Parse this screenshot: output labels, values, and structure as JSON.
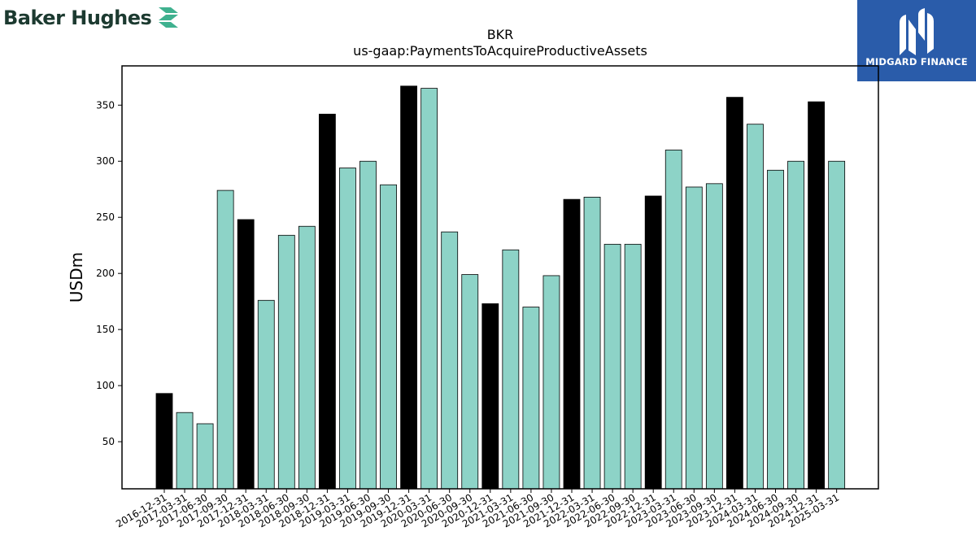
{
  "brand": {
    "left_name": "Baker Hughes",
    "left_logo_icon": "baker-hughes-chevron-icon",
    "left_color": "#1c3a30",
    "left_accent": "#3fb18f",
    "right_name": "MIDGARD FINANCE",
    "right_logo_icon": "midgard-m-icon",
    "right_color": "#2a5caa"
  },
  "chart_data": {
    "type": "bar",
    "title": "BKR",
    "subtitle": "us-gaap:PaymentsToAcquireProductiveAssets",
    "xlabel": "",
    "ylabel": "USDm",
    "ylim": [
      8,
      385
    ],
    "yticks": [
      50,
      100,
      150,
      200,
      250,
      300,
      350
    ],
    "grid": false,
    "colors": {
      "highlight": "#000000",
      "normal": "#8dd3c7",
      "edge": "#000000"
    },
    "categories": [
      "2016-12-31",
      "2017-03-31",
      "2017-06-30",
      "2017-09-30",
      "2017-12-31",
      "2018-03-31",
      "2018-06-30",
      "2018-09-30",
      "2018-12-31",
      "2019-03-31",
      "2019-06-30",
      "2019-09-30",
      "2019-12-31",
      "2020-03-31",
      "2020-06-30",
      "2020-09-30",
      "2020-12-31",
      "2021-03-31",
      "2021-06-30",
      "2021-09-30",
      "2021-12-31",
      "2022-03-31",
      "2022-06-30",
      "2022-09-30",
      "2022-12-31",
      "2023-03-31",
      "2023-06-30",
      "2023-09-30",
      "2023-12-31",
      "2024-03-31",
      "2024-06-30",
      "2024-09-30",
      "2024-12-31",
      "2025-03-31"
    ],
    "values": [
      93,
      76,
      66,
      274,
      248,
      176,
      234,
      242,
      342,
      294,
      300,
      279,
      367,
      365,
      237,
      199,
      173,
      221,
      170,
      198,
      266,
      268,
      226,
      226,
      269,
      310,
      277,
      280,
      357,
      333,
      292,
      300,
      353,
      300
    ],
    "highlighted": [
      true,
      false,
      false,
      false,
      true,
      false,
      false,
      false,
      true,
      false,
      false,
      false,
      true,
      false,
      false,
      false,
      true,
      false,
      false,
      false,
      true,
      false,
      false,
      false,
      true,
      false,
      false,
      false,
      true,
      false,
      false,
      false,
      true,
      false
    ]
  }
}
